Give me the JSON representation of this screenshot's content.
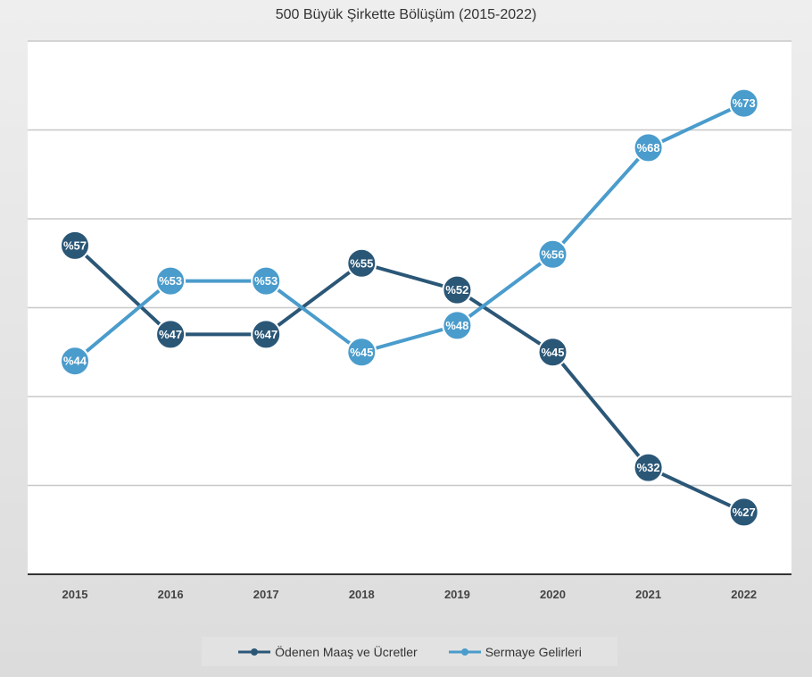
{
  "chart_data": {
    "type": "line",
    "title": "500 Büyük Şirkette Bölüşüm (2015-2022)",
    "xlabel": "",
    "ylabel": "",
    "categories": [
      "2015",
      "2016",
      "2017",
      "2018",
      "2019",
      "2020",
      "2021",
      "2022"
    ],
    "ylim": [
      20,
      80
    ],
    "grid": true,
    "legend": "bottom",
    "series": [
      {
        "name": "Ödenen Maaş ve Ücretler",
        "color": "#2b5777",
        "values": [
          57,
          47,
          47,
          55,
          52,
          45,
          32,
          27
        ],
        "labels": [
          "%57",
          "%47",
          "%47",
          "%55",
          "%52",
          "%45",
          "%32",
          "%27"
        ]
      },
      {
        "name": "Sermaye Gelirleri",
        "color": "#4a9ccc",
        "values": [
          44,
          53,
          53,
          45,
          48,
          56,
          68,
          73
        ],
        "labels": [
          "%44",
          "%53",
          "%53",
          "%45",
          "%48",
          "%56",
          "%68",
          "%73"
        ]
      }
    ]
  }
}
